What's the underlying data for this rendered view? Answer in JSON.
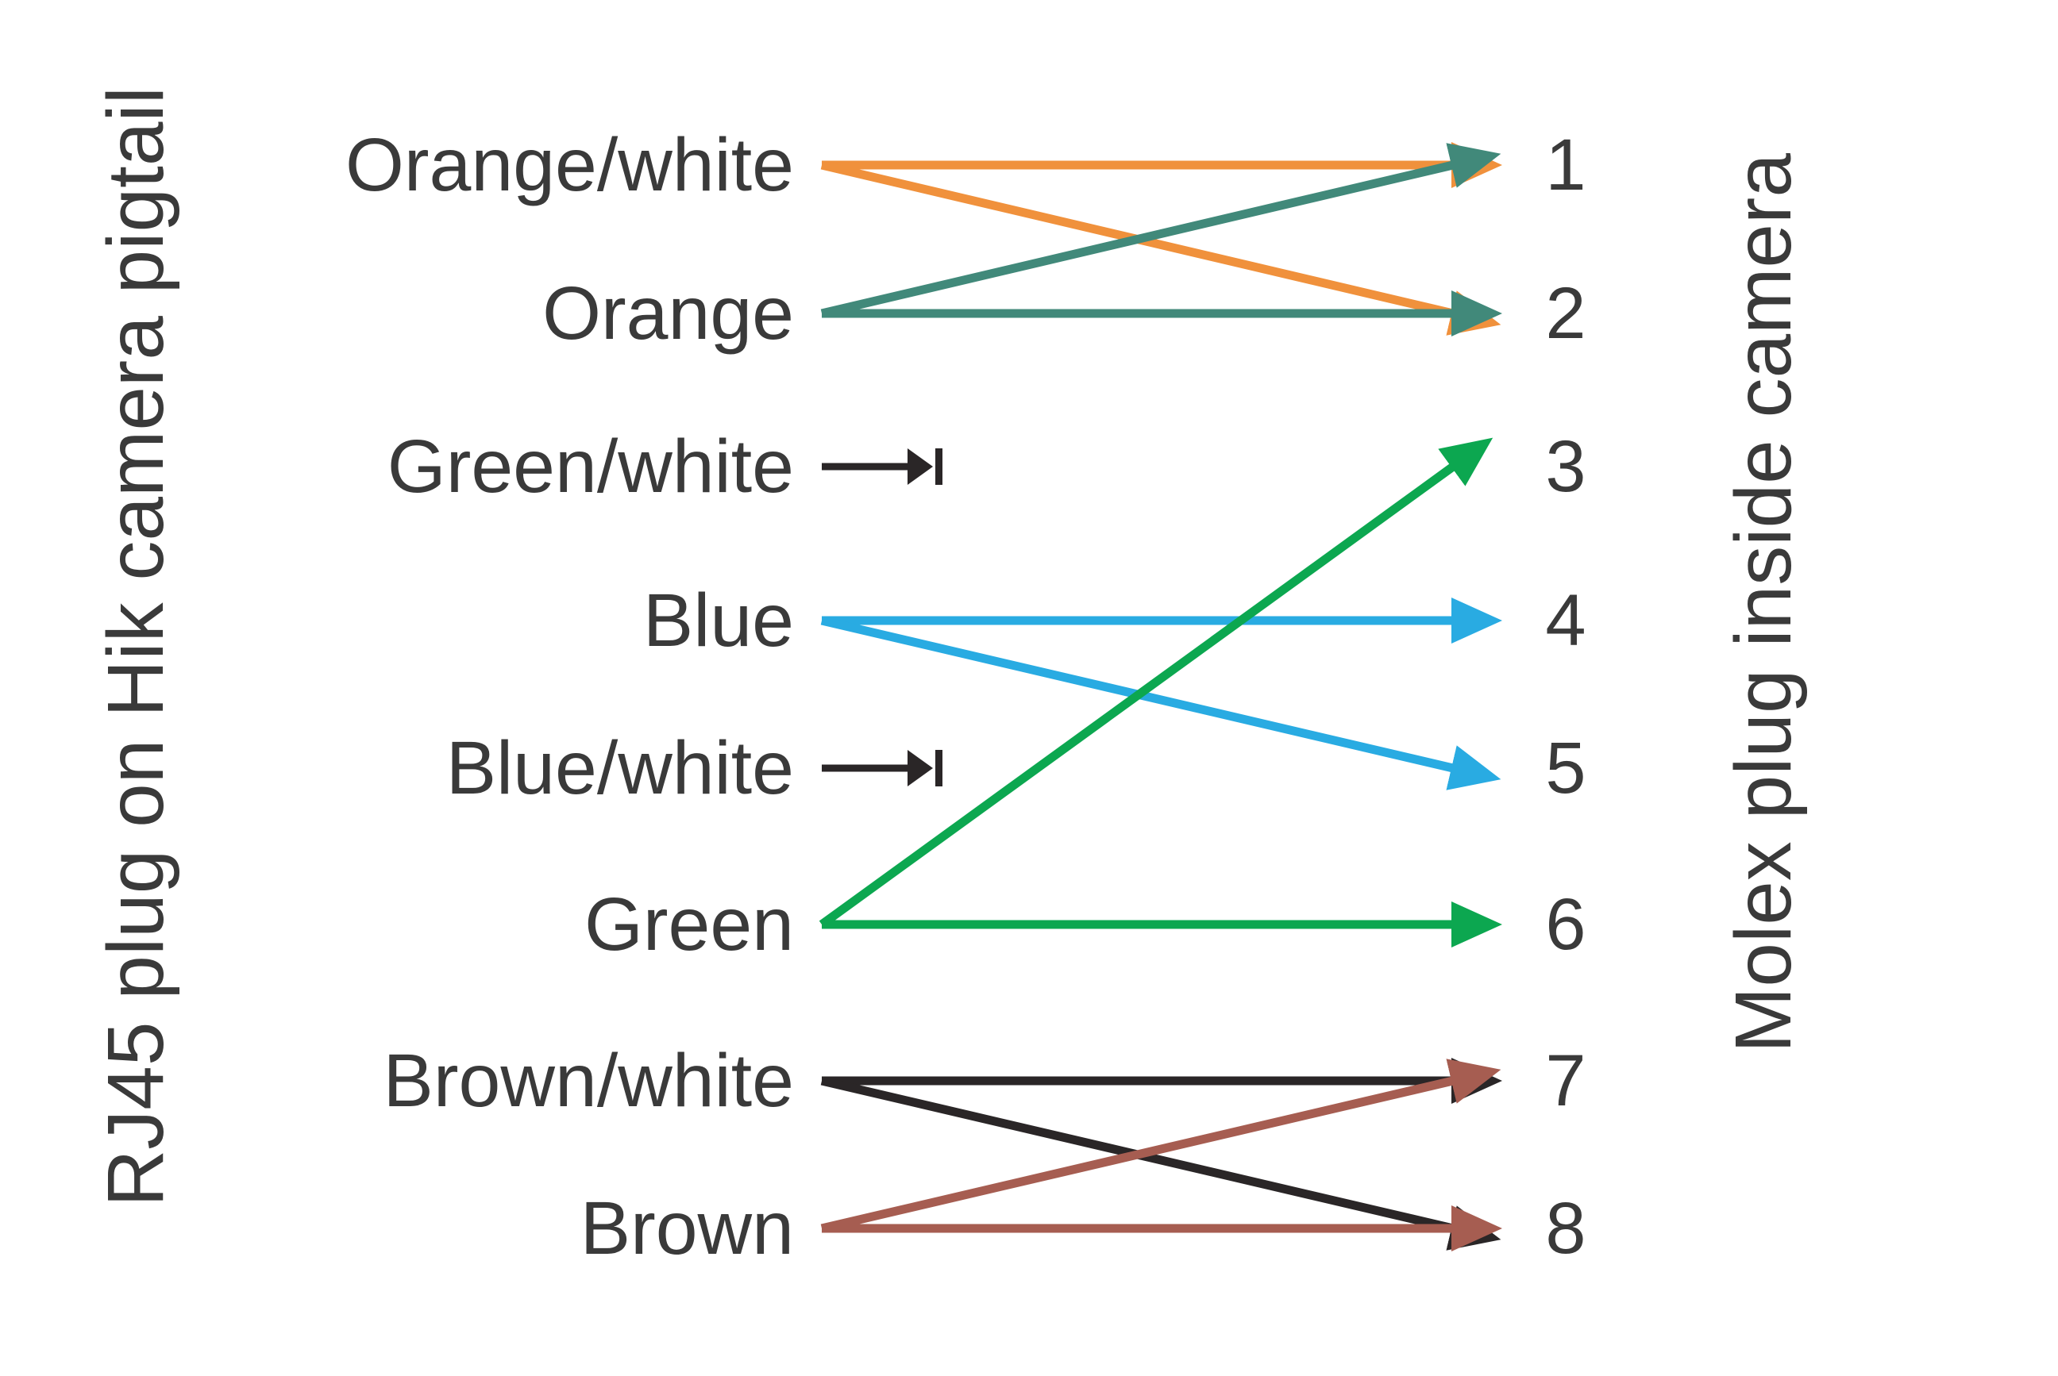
{
  "diagram": {
    "left_axis_label": "RJ45 plug on Hik camera pigtail",
    "right_axis_label": "Molex plug inside camera",
    "wires": [
      "Orange/white",
      "Orange",
      "Green/white",
      "Blue",
      "Blue/white",
      "Green",
      "Brown/white",
      "Brown"
    ],
    "pins": [
      "1",
      "2",
      "3",
      "4",
      "5",
      "6",
      "7",
      "8"
    ],
    "colors": {
      "orange": "#F0913C",
      "teal": "#41897A",
      "blue": "#29ABE2",
      "green": "#0CA750",
      "brown": "#A65D51",
      "black": "#2A2627",
      "text": "#3A3A3A"
    },
    "connections": [
      {
        "from": "Orange/white",
        "to": "1",
        "color": "orange"
      },
      {
        "from": "Orange/white",
        "to": "2",
        "color": "orange"
      },
      {
        "from": "Orange",
        "to": "1",
        "color": "teal"
      },
      {
        "from": "Orange",
        "to": "2",
        "color": "teal"
      },
      {
        "from": "Blue",
        "to": "4",
        "color": "blue"
      },
      {
        "from": "Blue",
        "to": "5",
        "color": "blue"
      },
      {
        "from": "Green",
        "to": "3",
        "color": "green"
      },
      {
        "from": "Green",
        "to": "6",
        "color": "green"
      },
      {
        "from": "Brown/white",
        "to": "7",
        "color": "black"
      },
      {
        "from": "Brown/white",
        "to": "8",
        "color": "black"
      },
      {
        "from": "Brown",
        "to": "7",
        "color": "brown"
      },
      {
        "from": "Brown",
        "to": "8",
        "color": "brown"
      }
    ],
    "terminated_wires": [
      "Green/white",
      "Blue/white"
    ]
  }
}
